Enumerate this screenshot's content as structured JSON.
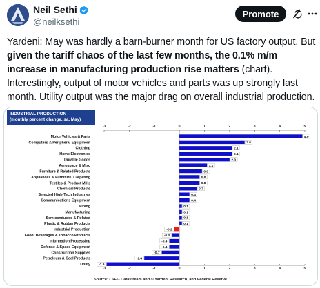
{
  "tweet": {
    "author": {
      "display_name": "Neil Sethi",
      "handle": "@neilksethi",
      "verified": true,
      "verified_color": "#1d9bf0"
    },
    "promote_label": "Promote",
    "icons": [
      "grok-icon",
      "more-icon"
    ],
    "text": {
      "part1": "Yardeni: May was hardly a barn-burner month for US factory output. But ",
      "bold": "given the tariff chaos of the last few months, the 0.1% m/m increase in manufacturing production rise matters",
      "part2": " (chart). Interestingly, output of motor vehicles and parts was up strongly last month. Utility output was the major drag on overall industrial production."
    }
  },
  "chart_data": {
    "type": "bar",
    "orientation": "horizontal",
    "title_line1": "INDUSTRIAL PRODUCTION",
    "title_line2": "(monthly percent change, sa,  May)",
    "source": "Source: LSEG Datastream and © Yardeni Research, and Federal Reserve.",
    "xlim": [
      -3,
      5
    ],
    "xticks": [
      "-3",
      "-2",
      "-1",
      "0",
      "1",
      "2",
      "3",
      "4",
      "5"
    ],
    "categories": [
      "Motor Vehicles & Parts",
      "Computers & Peripheral Equipment",
      "Clothing",
      "Home Electronics",
      "Durable Goods",
      "Aerospace & Misc",
      "Furniture & Related Products",
      "Appliances & Furniture, Carpeting",
      "Textiles & Product Mills",
      "Chemical Products",
      "Selected High-Tech Industries",
      "Communications Equipment",
      "Mining",
      "Manufacturing",
      "Semiconductor & Related",
      "Plastic & Rubber Products",
      "Industrial Production",
      "Food, Beverages & Tobacco Products",
      "Information Processing",
      "Defense & Space Equipment",
      "Construction Supplies",
      "Petroleum & Coal Products",
      "Utility"
    ],
    "values": [
      4.9,
      2.6,
      2.1,
      2.1,
      2.0,
      1.1,
      0.9,
      0.8,
      0.8,
      0.7,
      0.4,
      0.4,
      0.1,
      0.1,
      0.1,
      0.1,
      -0.2,
      -0.3,
      -0.4,
      -0.4,
      -0.7,
      -1.4,
      -2.9
    ],
    "labels": [
      "4.9",
      "2.6",
      "2.1",
      "2.1",
      "2.0",
      "1.1",
      "0.9",
      "0.8",
      "0.8",
      "0.7",
      "0.4",
      "0.4",
      "0.1",
      "0.1",
      "0.1",
      "0.1",
      "-0.2",
      "-0.3",
      "-0.4",
      "-0.4",
      "-0.7",
      "-1.4",
      "-2.9"
    ],
    "highlight_category": "Industrial Production",
    "colors": {
      "bar": "#1010c8",
      "highlight": "#e8201c",
      "title_bg": "#1f3f8f"
    },
    "grid": false
  }
}
